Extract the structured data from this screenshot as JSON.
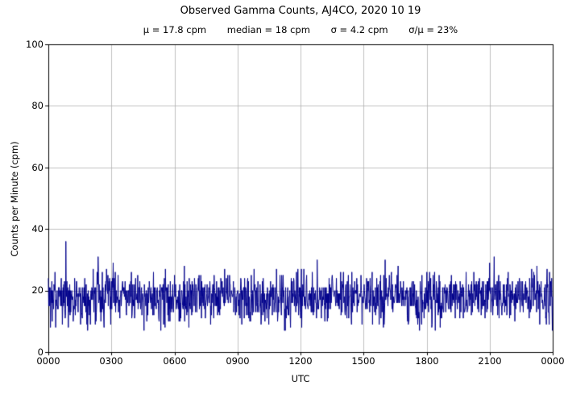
{
  "chart_data": {
    "type": "line",
    "title": "Observed Gamma Counts, AJ4CO, 2020 10 19",
    "stats": {
      "mu": "μ = 17.8 cpm",
      "median": "median = 18 cpm",
      "sigma": "σ = 4.2 cpm",
      "sigma_over_mu": "σ/μ = 23%"
    },
    "xlabel": "UTC",
    "ylabel": "Counts per Minute (cpm)",
    "xlim_minutes": [
      0,
      1440
    ],
    "ylim": [
      0,
      100
    ],
    "x_tick_labels": [
      "0000",
      "0300",
      "0600",
      "0900",
      "1200",
      "1500",
      "1800",
      "2100",
      "0000"
    ],
    "x_tick_minutes": [
      0,
      180,
      360,
      540,
      720,
      900,
      1080,
      1260,
      1440
    ],
    "y_tick_labels": [
      "0",
      "20",
      "40",
      "60",
      "80",
      "100"
    ],
    "y_tick_values": [
      0,
      20,
      40,
      60,
      80,
      100
    ],
    "grid": true,
    "grid_color": "#b0b0b0",
    "line_color": "#00008B",
    "series": {
      "name": "observed gamma counts",
      "sampling": "counts per minute, one sample per minute over 24 h UTC",
      "n_points": 1440,
      "mean_cpm": 17.8,
      "median_cpm": 18,
      "sigma_cpm": 4.2,
      "min_cpm": 7,
      "max_cpm": 36,
      "max_at_minute": 50
    }
  }
}
